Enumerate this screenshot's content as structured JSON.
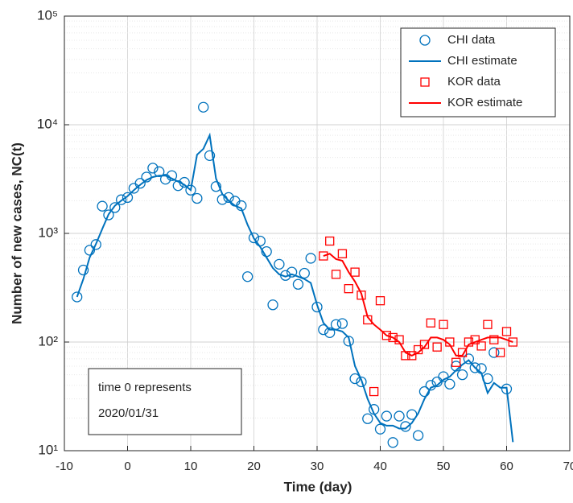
{
  "chart_data": {
    "type": "line",
    "log_y": true,
    "grid": true,
    "minor_grid": true,
    "legend": "northeast",
    "xlabel": "Time (day)",
    "ylabel": "Number of new cases, NC(t)",
    "annotation": [
      "time 0 represents",
      "2020/01/31"
    ],
    "xlim": [
      -10,
      70
    ],
    "xticks": [
      -10,
      0,
      10,
      20,
      30,
      40,
      50,
      60,
      70
    ],
    "ylim": [
      10,
      100000
    ],
    "yticks": [
      {
        "value": 10,
        "label": "10¹"
      },
      {
        "value": 100,
        "label": "10²"
      },
      {
        "value": 1000,
        "label": "10³"
      },
      {
        "value": 10000,
        "label": "10⁴"
      },
      {
        "value": 100000,
        "label": "10⁵"
      }
    ],
    "series": [
      {
        "name": "CHI data",
        "color": "#0072bd",
        "mode": "markers",
        "marker": "circle",
        "x": [
          -8,
          -7,
          -6,
          -5,
          -4,
          -3,
          -2,
          -1,
          0,
          1,
          2,
          3,
          4,
          5,
          6,
          7,
          8,
          9,
          10,
          11,
          12,
          13,
          14,
          15,
          16,
          17,
          18,
          19,
          20,
          21,
          22,
          23,
          24,
          25,
          26,
          27,
          28,
          29,
          30,
          31,
          32,
          33,
          34,
          35,
          36,
          37,
          38,
          39,
          40,
          41,
          42,
          43,
          44,
          45,
          46,
          47,
          48,
          49,
          50,
          51,
          52,
          53,
          54,
          55,
          56,
          57,
          58,
          60
        ],
        "values": [
          260,
          460,
          700,
          790,
          1780,
          1480,
          1730,
          2040,
          2140,
          2600,
          2890,
          3300,
          3990,
          3700,
          3150,
          3400,
          2750,
          2950,
          2500,
          2100,
          14500,
          5200,
          2700,
          2050,
          2140,
          1980,
          1800,
          400,
          910,
          850,
          680,
          220,
          520,
          410,
          440,
          340,
          430,
          590,
          210,
          130,
          122,
          145,
          148,
          102,
          46,
          43,
          19.7,
          24,
          15.8,
          20.8,
          11.9,
          20.8,
          16.7,
          21.5,
          13.8,
          35,
          40,
          43,
          48,
          41,
          60,
          50,
          70,
          58,
          57,
          46,
          80,
          37
        ]
      },
      {
        "name": "CHI estimate",
        "color": "#0072bd",
        "mode": "lines",
        "x": [
          -8,
          -7,
          -6,
          -5,
          -4,
          -3,
          -2,
          -1,
          0,
          1,
          2,
          3,
          4,
          5,
          6,
          7,
          8,
          9,
          10,
          11,
          12,
          13,
          14,
          15,
          16,
          17,
          18,
          19,
          20,
          21,
          22,
          23,
          24,
          25,
          26,
          27,
          28,
          29,
          30,
          31,
          32,
          33,
          34,
          35,
          36,
          37,
          38,
          39,
          40,
          41,
          42,
          43,
          44,
          45,
          46,
          47,
          48,
          49,
          50,
          51,
          52,
          53,
          54,
          55,
          56,
          57,
          58,
          59,
          60,
          61
        ],
        "values": [
          260,
          380,
          600,
          800,
          1100,
          1500,
          1800,
          2000,
          2200,
          2500,
          2800,
          3100,
          3300,
          3400,
          3400,
          3200,
          3000,
          2800,
          2500,
          5300,
          6000,
          8000,
          3200,
          2300,
          2000,
          1800,
          1700,
          1200,
          900,
          750,
          600,
          480,
          420,
          400,
          420,
          400,
          380,
          350,
          220,
          150,
          130,
          130,
          125,
          110,
          60,
          45,
          30,
          22,
          18,
          17,
          17,
          16,
          16,
          18,
          22,
          30,
          38,
          40,
          45,
          48,
          55,
          62,
          68,
          58,
          52,
          34,
          42,
          38,
          38,
          12
        ]
      },
      {
        "name": "KOR data",
        "color": "#ff0000",
        "mode": "markers",
        "marker": "square",
        "x": [
          31,
          32,
          33,
          34,
          35,
          36,
          37,
          38,
          39,
          40,
          41,
          42,
          43,
          44,
          45,
          46,
          47,
          48,
          49,
          50,
          51,
          52,
          53,
          54,
          55,
          56,
          57,
          58,
          59,
          60,
          61
        ],
        "values": [
          620,
          850,
          420,
          650,
          310,
          440,
          270,
          160,
          35,
          240,
          115,
          110,
          105,
          75,
          75,
          85,
          95,
          150,
          90,
          145,
          100,
          65,
          80,
          100,
          105,
          92,
          145,
          105,
          80,
          125,
          100
        ]
      },
      {
        "name": "KOR estimate",
        "color": "#ff0000",
        "mode": "lines",
        "x": [
          31,
          32,
          33,
          34,
          35,
          36,
          37,
          38,
          39,
          40,
          41,
          42,
          43,
          44,
          45,
          46,
          47,
          48,
          49,
          50,
          51,
          52,
          53,
          54,
          55,
          56,
          57,
          58,
          59,
          60,
          61
        ],
        "values": [
          620,
          650,
          580,
          560,
          440,
          360,
          280,
          170,
          145,
          130,
          115,
          110,
          100,
          80,
          75,
          80,
          90,
          110,
          110,
          105,
          95,
          75,
          75,
          95,
          100,
          105,
          110,
          110,
          110,
          105,
          100
        ]
      }
    ]
  }
}
